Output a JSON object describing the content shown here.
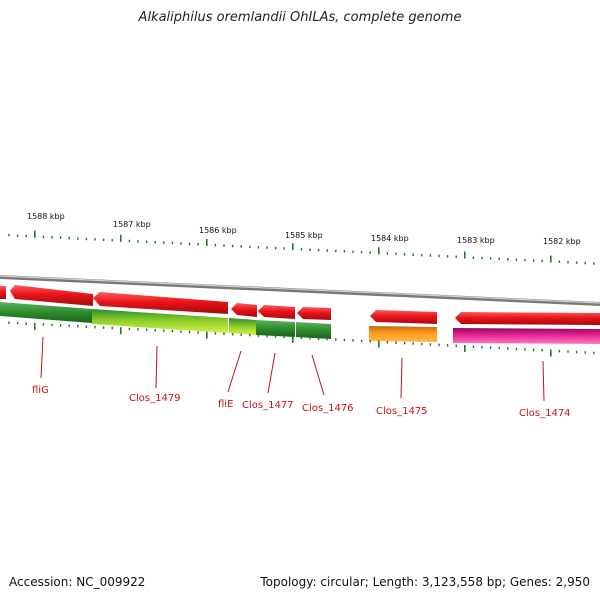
{
  "title": "Alkaliphilus oremlandii OhILAs, complete genome",
  "footer": {
    "accession": "Accession: NC_009922",
    "summary": "Topology: circular; Length: 3,123,558 bp; Genes: 2,950"
  },
  "ruler": {
    "ticks": [
      "1588 kbp",
      "1587 kbp",
      "1586 kbp",
      "1585 kbp",
      "1584 kbp",
      "1583 kbp",
      "1582 kbp"
    ]
  },
  "genes": [
    {
      "label": "fliG",
      "strand": "reverse",
      "cog_color": "#2e8b2e"
    },
    {
      "label": "Clos_1479",
      "strand": "reverse",
      "cog_color": "#2e8b2e"
    },
    {
      "label": "fliE",
      "strand": "reverse",
      "cog_color": "#2e8b2e"
    },
    {
      "label": "Clos_1477",
      "strand": "reverse",
      "cog_color": "#2e8b2e"
    },
    {
      "label": "Clos_1476",
      "strand": "reverse",
      "cog_color": "#2e8b2e"
    },
    {
      "label": "Clos_1475",
      "strand": "reverse",
      "cog_color": "#ff9a1a"
    },
    {
      "label": "Clos_1474",
      "strand": "reverse",
      "cog_color": "#e0208f"
    }
  ],
  "colors": {
    "cds": "#e8141a",
    "backbone": "#9a9a9a",
    "tick": "#1e7a1e",
    "label": "#cc1111",
    "alt_green": "#b8e02a"
  }
}
